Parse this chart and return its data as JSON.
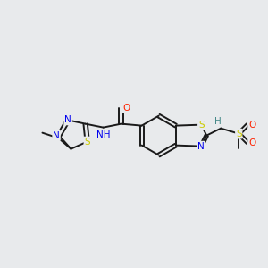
{
  "background_color": "#e8eaec",
  "bond_color": "#1a1a1a",
  "atom_colors": {
    "N": "#0000ee",
    "S": "#cccc00",
    "O": "#ff2200",
    "C": "#1a1a1a",
    "H": "#448888"
  },
  "figsize": [
    3.0,
    3.0
  ],
  "dpi": 100,
  "bond_lw": 1.4,
  "font_size": 7.5
}
